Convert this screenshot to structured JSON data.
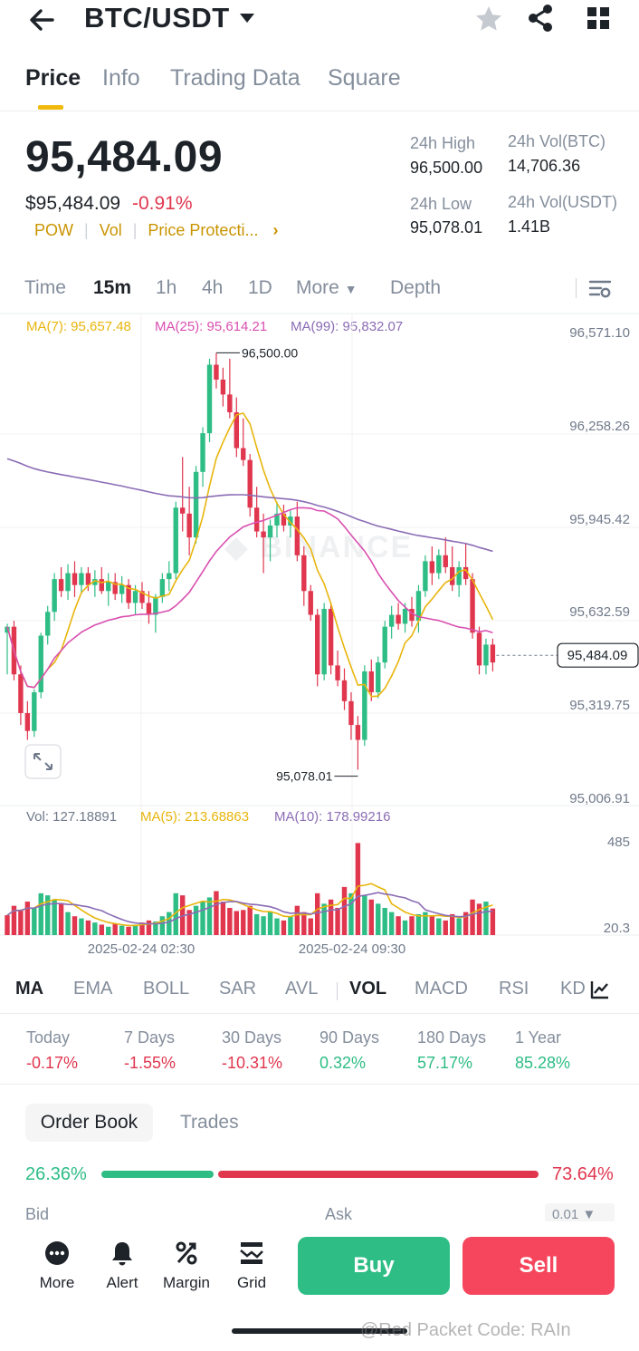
{
  "header": {
    "pair": "BTC/USDT"
  },
  "tabs": [
    "Price",
    "Info",
    "Trading Data",
    "Square"
  ],
  "price": {
    "last": "95,484.09",
    "usd": "$95,484.09",
    "change": "-0.91%",
    "tags": [
      "POW",
      "Vol",
      "Price Protecti..."
    ]
  },
  "stats": {
    "high_label": "24h High",
    "high_value": "96,500.00",
    "low_label": "24h Low",
    "low_value": "95,078.01",
    "vol_btc_label": "24h Vol(BTC)",
    "vol_btc_value": "14,706.36",
    "vol_usdt_label": "24h Vol(USDT)",
    "vol_usdt_value": "1.41B"
  },
  "intervals": [
    "Time",
    "15m",
    "1h",
    "4h",
    "1D",
    "More",
    "Depth"
  ],
  "active_interval": "15m",
  "ma_legend": {
    "ma7": "MA(7): 95,657.48",
    "ma25": "MA(25): 95,614.21",
    "ma99": "MA(99): 95,832.07"
  },
  "vol_legend": {
    "vol": "Vol: 127.18891",
    "ma5": "MA(5): 213.68863",
    "ma10": "MA(10): 178.99216"
  },
  "colors": {
    "up": "#2ebd85",
    "down": "#e0364e",
    "ma7": "#e8b50c",
    "ma25": "#d94fb0",
    "ma99": "#8b6cb5",
    "accent": "#f0b90b"
  },
  "indicators": [
    "MA",
    "EMA",
    "BOLL",
    "SAR",
    "AVL",
    "VOL",
    "MACD",
    "RSI",
    "KD"
  ],
  "performance": [
    {
      "label": "Today",
      "value": "-0.17%",
      "dir": "down"
    },
    {
      "label": "7 Days",
      "value": "-1.55%",
      "dir": "down"
    },
    {
      "label": "30 Days",
      "value": "-10.31%",
      "dir": "down"
    },
    {
      "label": "90 Days",
      "value": "0.32%",
      "dir": "up"
    },
    {
      "label": "180 Days",
      "value": "57.17%",
      "dir": "up"
    },
    {
      "label": "1 Year",
      "value": "85.28%",
      "dir": "up"
    }
  ],
  "order_book": {
    "tab_active": "Order Book",
    "tab_inactive": "Trades",
    "bid_pct": "26.36%",
    "ask_pct": "73.64%",
    "bid_share": 0.2636,
    "bid_label": "Bid",
    "ask_label": "Ask",
    "step": "0.01"
  },
  "bottom_nav": [
    "More",
    "Alert",
    "Margin",
    "Grid"
  ],
  "actions": {
    "buy": "Buy",
    "sell": "Sell"
  },
  "watermark": "@Red Packet Code: RAIn",
  "chart_data": {
    "type": "candlestick",
    "price_axis_ticks": [
      "96,571.10",
      "96,258.26",
      "95,945.42",
      "95,632.59",
      "95,319.75",
      "95,006.91"
    ],
    "ylim": [
      95006.91,
      96571.1
    ],
    "current_price_label": "95,484.09",
    "current_price": 95484.09,
    "high_annotation": "96,500.00",
    "high_value": 96500.0,
    "low_annotation": "95,078.01",
    "low_value": 95078.01,
    "time_labels": [
      "2025-02-24 02:30",
      "2025-02-24 09:30"
    ],
    "volume_axis_ticks": [
      "485",
      "20.3"
    ],
    "volume_ylim": [
      20.3,
      485
    ],
    "candles": [
      [
        95560,
        95590,
        95420,
        95580
      ],
      [
        95580,
        95600,
        95400,
        95420
      ],
      [
        95420,
        95450,
        95250,
        95290
      ],
      [
        95290,
        95330,
        95200,
        95230
      ],
      [
        95230,
        95370,
        95210,
        95360
      ],
      [
        95360,
        95560,
        95340,
        95550
      ],
      [
        95550,
        95650,
        95520,
        95630
      ],
      [
        95630,
        95760,
        95600,
        95740
      ],
      [
        95740,
        95780,
        95680,
        95700
      ],
      [
        95700,
        95790,
        95670,
        95760
      ],
      [
        95760,
        95800,
        95680,
        95720
      ],
      [
        95720,
        95780,
        95690,
        95760
      ],
      [
        95760,
        95780,
        95700,
        95720
      ],
      [
        95720,
        95770,
        95680,
        95740
      ],
      [
        95740,
        95780,
        95690,
        95700
      ],
      [
        95700,
        95760,
        95650,
        95730
      ],
      [
        95730,
        95760,
        95670,
        95690
      ],
      [
        95690,
        95750,
        95660,
        95720
      ],
      [
        95720,
        95740,
        95640,
        95660
      ],
      [
        95660,
        95720,
        95620,
        95700
      ],
      [
        95700,
        95730,
        95640,
        95660
      ],
      [
        95660,
        95700,
        95590,
        95620
      ],
      [
        95620,
        95690,
        95560,
        95680
      ],
      [
        95680,
        95760,
        95660,
        95740
      ],
      [
        95740,
        95800,
        95700,
        95760
      ],
      [
        95760,
        96000,
        95740,
        95980
      ],
      [
        95980,
        96150,
        95900,
        95960
      ],
      [
        95960,
        96050,
        95820,
        95880
      ],
      [
        95880,
        96120,
        95860,
        96100
      ],
      [
        96100,
        96250,
        96050,
        96230
      ],
      [
        96230,
        96480,
        96200,
        96460
      ],
      [
        96460,
        96500,
        96380,
        96410
      ],
      [
        96410,
        96450,
        96320,
        96360
      ],
      [
        96360,
        96480,
        96280,
        96300
      ],
      [
        96300,
        96350,
        96150,
        96180
      ],
      [
        96180,
        96280,
        96120,
        96140
      ],
      [
        96140,
        96160,
        95950,
        95980
      ],
      [
        95980,
        96050,
        95880,
        95900
      ],
      [
        95900,
        95960,
        95760,
        95880
      ],
      [
        95880,
        95940,
        95800,
        95920
      ],
      [
        95920,
        96000,
        95880,
        95960
      ],
      [
        95960,
        95990,
        95900,
        95920
      ],
      [
        95920,
        95970,
        95880,
        95950
      ],
      [
        95950,
        96000,
        95800,
        95820
      ],
      [
        95820,
        95850,
        95650,
        95700
      ],
      [
        95700,
        95720,
        95600,
        95620
      ],
      [
        95620,
        95640,
        95380,
        95420
      ],
      [
        95420,
        95660,
        95400,
        95640
      ],
      [
        95640,
        95660,
        95420,
        95450
      ],
      [
        95450,
        95500,
        95380,
        95400
      ],
      [
        95400,
        95440,
        95300,
        95330
      ],
      [
        95330,
        95360,
        95200,
        95250
      ],
      [
        95250,
        95280,
        95100,
        95200
      ],
      [
        95200,
        95450,
        95180,
        95430
      ],
      [
        95430,
        95470,
        95330,
        95360
      ],
      [
        95360,
        95480,
        95340,
        95460
      ],
      [
        95460,
        95600,
        95440,
        95580
      ],
      [
        95580,
        95650,
        95540,
        95620
      ],
      [
        95620,
        95660,
        95570,
        95590
      ],
      [
        95590,
        95660,
        95560,
        95640
      ],
      [
        95640,
        95680,
        95580,
        95600
      ],
      [
        95600,
        95720,
        95560,
        95700
      ],
      [
        95700,
        95820,
        95680,
        95800
      ],
      [
        95800,
        95850,
        95720,
        95760
      ],
      [
        95760,
        95840,
        95740,
        95820
      ],
      [
        95820,
        95880,
        95760,
        95780
      ],
      [
        95780,
        95850,
        95700,
        95720
      ],
      [
        95720,
        95800,
        95680,
        95780
      ],
      [
        95780,
        95860,
        95720,
        95740
      ],
      [
        95740,
        95760,
        95540,
        95560
      ],
      [
        95560,
        95580,
        95420,
        95450
      ],
      [
        95450,
        95540,
        95420,
        95520
      ],
      [
        95520,
        95540,
        95430,
        95460
      ]
    ],
    "volumes": [
      [
        95,
        "down"
      ],
      [
        140,
        "down"
      ],
      [
        120,
        "down"
      ],
      [
        160,
        "down"
      ],
      [
        130,
        "up"
      ],
      [
        200,
        "up"
      ],
      [
        190,
        "up"
      ],
      [
        170,
        "up"
      ],
      [
        150,
        "down"
      ],
      [
        110,
        "up"
      ],
      [
        90,
        "down"
      ],
      [
        80,
        "up"
      ],
      [
        70,
        "down"
      ],
      [
        60,
        "up"
      ],
      [
        50,
        "down"
      ],
      [
        40,
        "up"
      ],
      [
        55,
        "down"
      ],
      [
        45,
        "up"
      ],
      [
        40,
        "down"
      ],
      [
        50,
        "up"
      ],
      [
        60,
        "down"
      ],
      [
        70,
        "down"
      ],
      [
        65,
        "up"
      ],
      [
        90,
        "up"
      ],
      [
        110,
        "up"
      ],
      [
        200,
        "up"
      ],
      [
        190,
        "down"
      ],
      [
        120,
        "down"
      ],
      [
        140,
        "up"
      ],
      [
        160,
        "up"
      ],
      [
        180,
        "up"
      ],
      [
        210,
        "down"
      ],
      [
        160,
        "down"
      ],
      [
        130,
        "down"
      ],
      [
        115,
        "down"
      ],
      [
        120,
        "down"
      ],
      [
        140,
        "down"
      ],
      [
        100,
        "up"
      ],
      [
        90,
        "up"
      ],
      [
        110,
        "up"
      ],
      [
        80,
        "up"
      ],
      [
        70,
        "down"
      ],
      [
        90,
        "up"
      ],
      [
        140,
        "down"
      ],
      [
        110,
        "down"
      ],
      [
        80,
        "down"
      ],
      [
        200,
        "down"
      ],
      [
        150,
        "up"
      ],
      [
        170,
        "down"
      ],
      [
        130,
        "down"
      ],
      [
        230,
        "down"
      ],
      [
        200,
        "up"
      ],
      [
        440,
        "down"
      ],
      [
        190,
        "up"
      ],
      [
        170,
        "down"
      ],
      [
        150,
        "up"
      ],
      [
        130,
        "up"
      ],
      [
        110,
        "up"
      ],
      [
        90,
        "down"
      ],
      [
        70,
        "up"
      ],
      [
        90,
        "down"
      ],
      [
        100,
        "up"
      ],
      [
        110,
        "up"
      ],
      [
        90,
        "down"
      ],
      [
        80,
        "up"
      ],
      [
        70,
        "down"
      ],
      [
        100,
        "down"
      ],
      [
        80,
        "up"
      ],
      [
        110,
        "down"
      ],
      [
        170,
        "down"
      ],
      [
        150,
        "down"
      ],
      [
        160,
        "up"
      ],
      [
        127,
        "down"
      ]
    ]
  }
}
